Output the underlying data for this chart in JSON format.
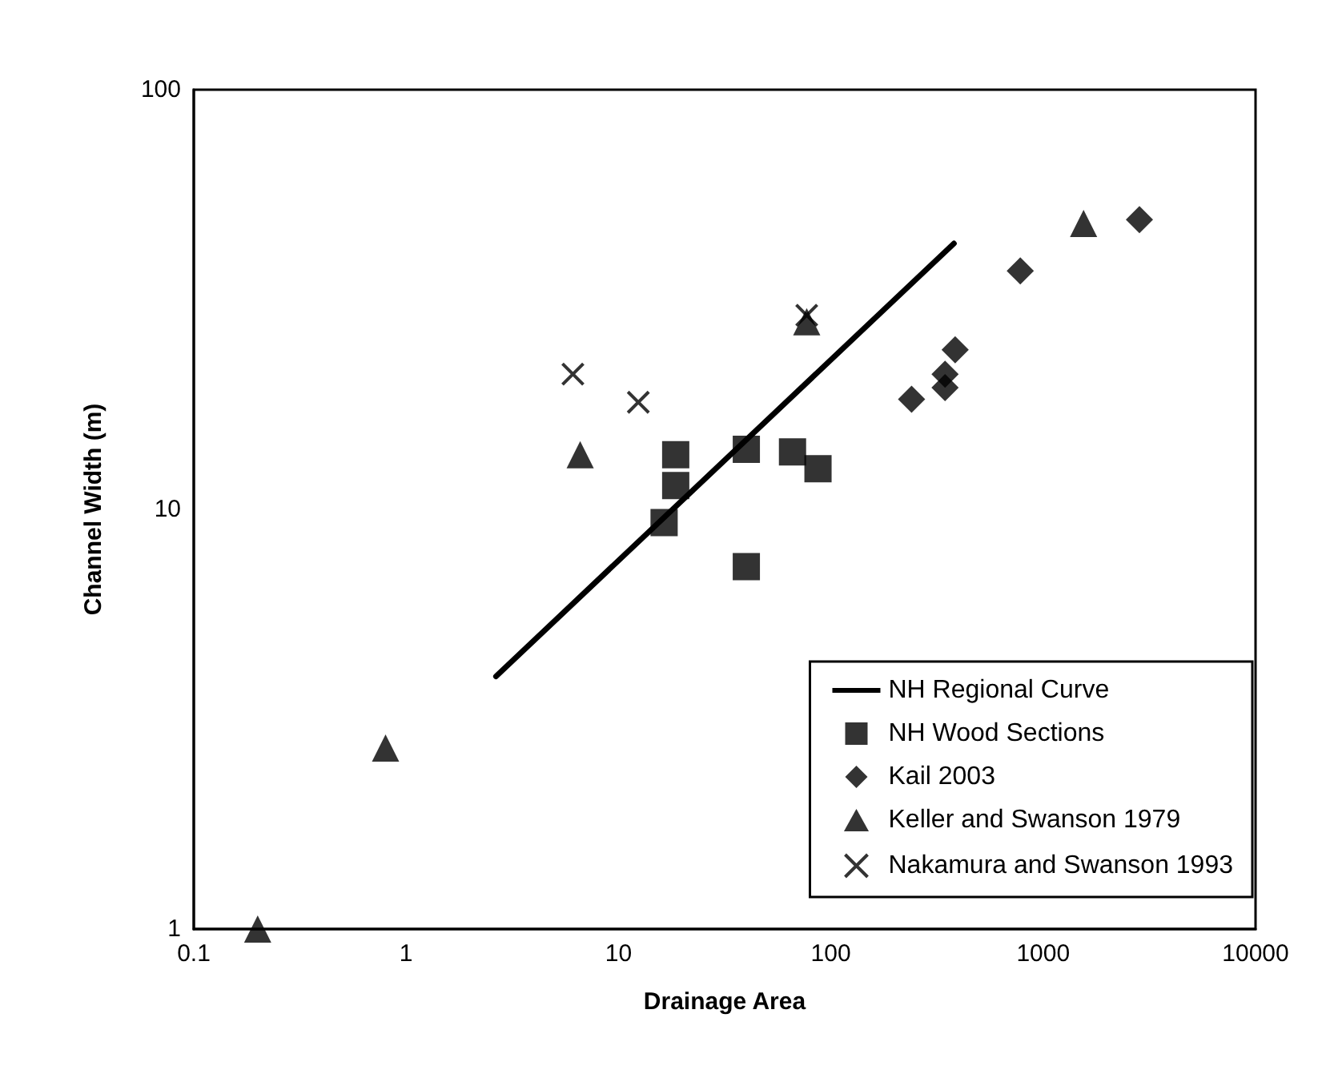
{
  "chart_data": {
    "type": "scatter",
    "xlabel": "Drainage Area",
    "ylabel": "Channel Width (m)",
    "log": "xy",
    "grid": false,
    "legend": "bottom right",
    "xlim": [
      0.1,
      10000
    ],
    "xticks": [
      0.1,
      1,
      10,
      100,
      1000,
      10000
    ],
    "ylim": [
      1,
      100
    ],
    "yticks": [
      1,
      10,
      100
    ],
    "series": [
      {
        "name": "NH Regional Curve",
        "type": "line",
        "color": "#000000",
        "marker": "none",
        "line_style": "solid",
        "x": [
          2.65,
          380
        ],
        "values": [
          4.0,
          43
        ]
      },
      {
        "name": "NH Wood Sections",
        "color": "#000000",
        "marker": "square",
        "x": [
          18.6,
          18.6,
          16.4,
          40,
          66,
          87,
          40
        ],
        "values": [
          13.5,
          11.4,
          9.3,
          13.9,
          13.7,
          12.5,
          7.3
        ]
      },
      {
        "name": "Kail 2003",
        "color": "#000000",
        "marker": "diamond",
        "x": [
          2840,
          780,
          385,
          345,
          345,
          240
        ],
        "values": [
          49,
          37,
          24,
          21,
          19.5,
          18.3
        ]
      },
      {
        "name": "Keller and Swanson 1979",
        "color": "#000000",
        "marker": "triangle",
        "x": [
          0.2,
          0.8,
          6.6,
          77,
          1550
        ],
        "values": [
          1,
          2.7,
          13.5,
          28,
          48
        ]
      },
      {
        "name": "Nakamura and Swanson 1993",
        "color": "#000000",
        "marker": "cross",
        "x": [
          6.1,
          12.4,
          77
        ],
        "values": [
          21,
          18,
          29
        ]
      }
    ]
  }
}
